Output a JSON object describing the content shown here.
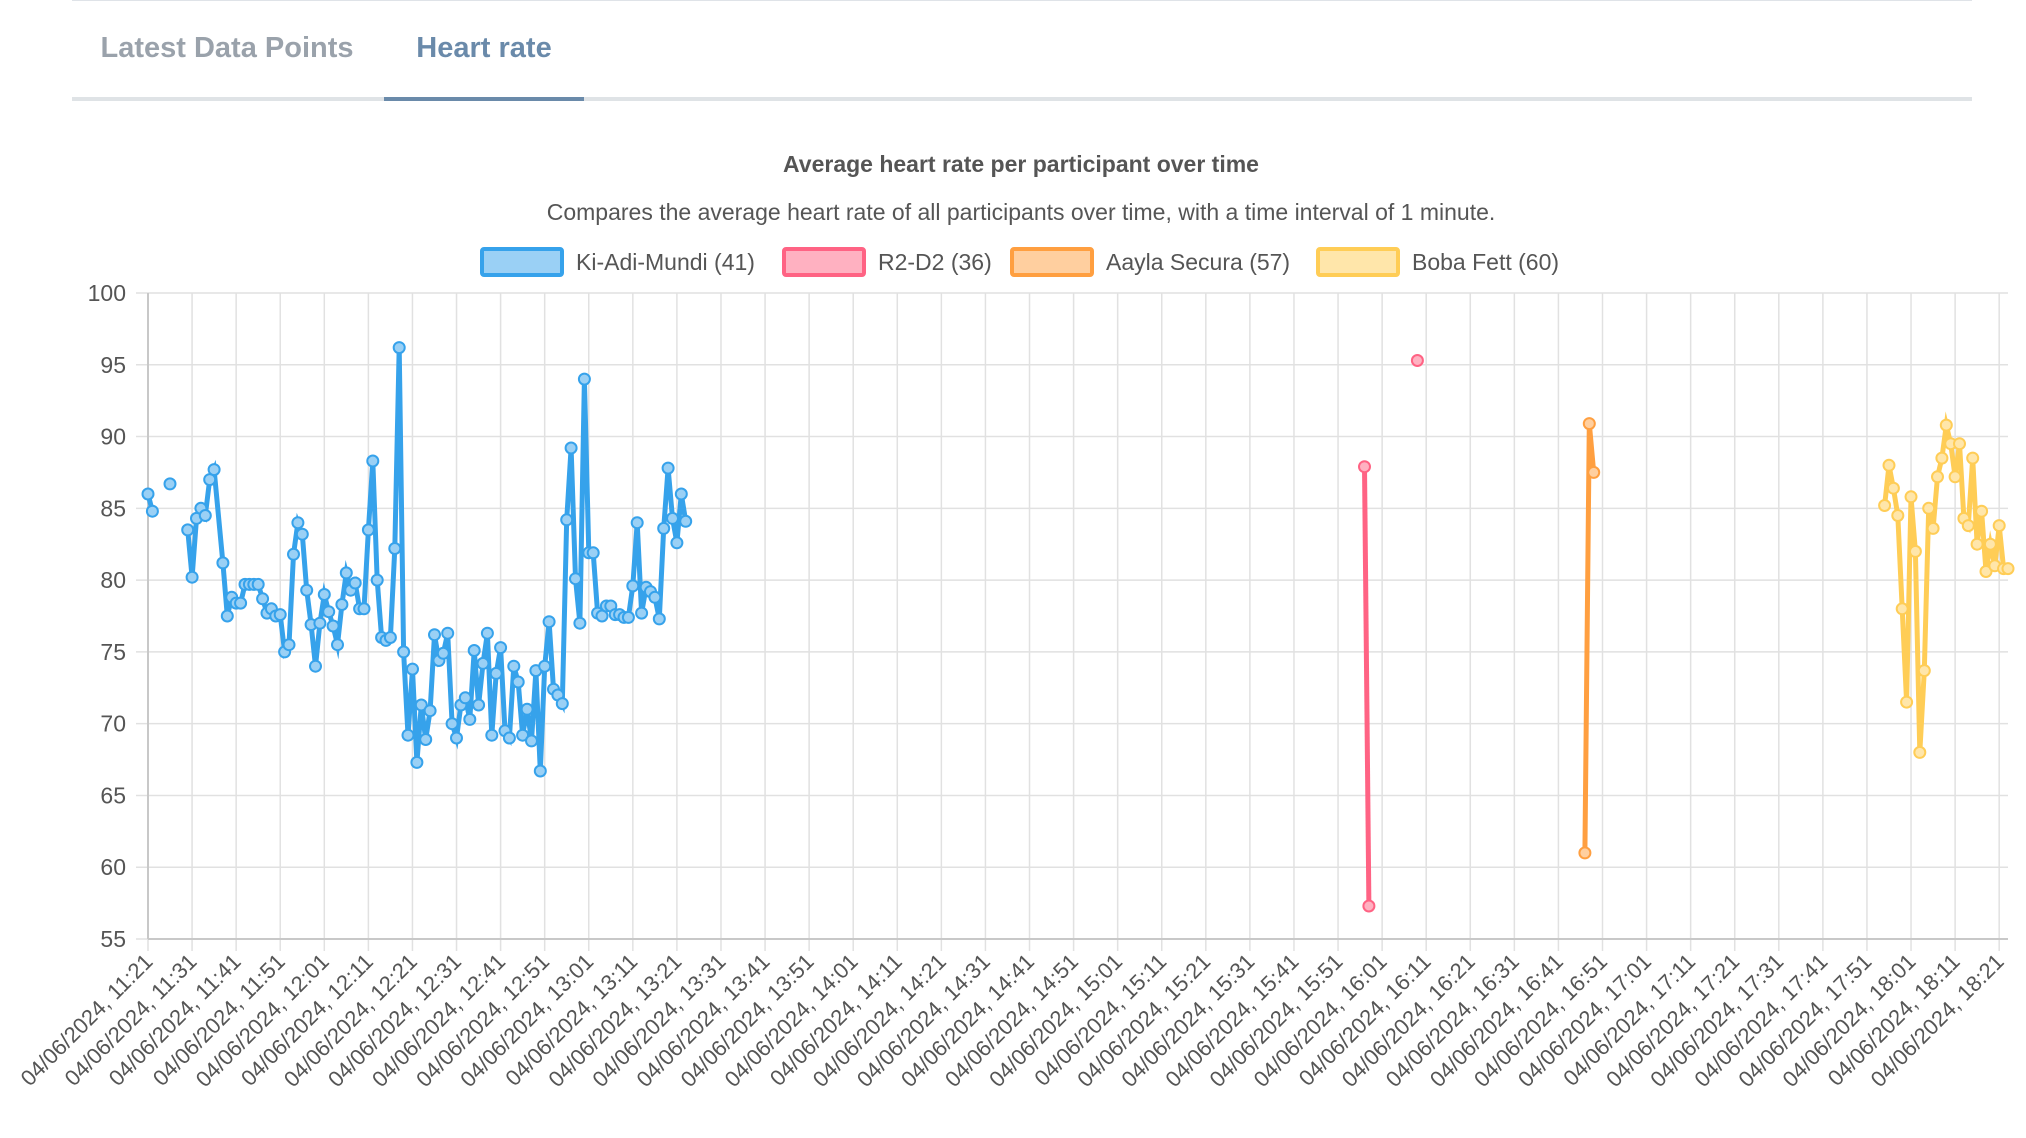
{
  "tabs": [
    {
      "label": "Latest Data Points",
      "active": false
    },
    {
      "label": "Heart rate",
      "active": true
    }
  ],
  "chart_data": {
    "type": "line",
    "title": "Average heart rate per participant over time",
    "subtitle": "Compares the average heart rate of all participants over time, with a time interval of 1 minute.",
    "ylim": [
      55,
      100
    ],
    "yticks": [
      100,
      95,
      90,
      85,
      80,
      75,
      70,
      65,
      60,
      55
    ],
    "grid": true,
    "legend_position": "top",
    "x_start": "04/06/2024, 11:21",
    "x_end": "04/06/2024, 18:23",
    "x_tick_labels": [
      "04/06/2024, 11:21",
      "04/06/2024, 11:31",
      "04/06/2024, 11:41",
      "04/06/2024, 11:51",
      "04/06/2024, 12:01",
      "04/06/2024, 12:11",
      "04/06/2024, 12:21",
      "04/06/2024, 12:31",
      "04/06/2024, 12:41",
      "04/06/2024, 12:51",
      "04/06/2024, 13:01",
      "04/06/2024, 13:11",
      "04/06/2024, 13:21",
      "04/06/2024, 13:31",
      "04/06/2024, 13:41",
      "04/06/2024, 13:51",
      "04/06/2024, 14:01",
      "04/06/2024, 14:11",
      "04/06/2024, 14:21",
      "04/06/2024, 14:31",
      "04/06/2024, 14:41",
      "04/06/2024, 14:51",
      "04/06/2024, 15:01",
      "04/06/2024, 15:11",
      "04/06/2024, 15:21",
      "04/06/2024, 15:31",
      "04/06/2024, 15:41",
      "04/06/2024, 15:51",
      "04/06/2024, 16:01",
      "04/06/2024, 16:11",
      "04/06/2024, 16:21",
      "04/06/2024, 16:31",
      "04/06/2024, 16:41",
      "04/06/2024, 16:51",
      "04/06/2024, 17:01",
      "04/06/2024, 17:11",
      "04/06/2024, 17:21",
      "04/06/2024, 17:31",
      "04/06/2024, 17:41",
      "04/06/2024, 17:51",
      "04/06/2024, 18:01",
      "04/06/2024, 18:11",
      "04/06/2024, 18:21"
    ],
    "series": [
      {
        "name": "Ki-Adi-Mundi (41)",
        "color": "#36a2eb",
        "fill": "#9ad0f5",
        "segments": [
          [
            [
              "11:21",
              86
            ],
            [
              "11:22",
              84.8
            ]
          ],
          [
            [
              "11:26",
              86.7
            ]
          ],
          [
            [
              "11:30",
              83.5
            ],
            [
              "11:31",
              80.2
            ],
            [
              "11:32",
              84.3
            ],
            [
              "11:33",
              85
            ],
            [
              "11:34",
              84.5
            ],
            [
              "11:35",
              87
            ],
            [
              "11:36",
              87.7
            ],
            [
              "11:38",
              81.2
            ],
            [
              "11:39",
              77.5
            ],
            [
              "11:40",
              78.8
            ],
            [
              "11:41",
              78.4
            ],
            [
              "11:42",
              78.4
            ],
            [
              "11:43",
              79.7
            ],
            [
              "11:44",
              79.7
            ],
            [
              "11:45",
              79.7
            ],
            [
              "11:46",
              79.7
            ],
            [
              "11:47",
              78.7
            ],
            [
              "11:48",
              77.7
            ],
            [
              "11:49",
              78
            ],
            [
              "11:50",
              77.5
            ],
            [
              "11:51",
              77.6
            ],
            [
              "11:52",
              75
            ],
            [
              "11:53",
              75.5
            ],
            [
              "11:54",
              81.8
            ],
            [
              "11:55",
              84
            ],
            [
              "11:56",
              83.2
            ],
            [
              "11:57",
              79.3
            ],
            [
              "11:58",
              76.9
            ],
            [
              "11:59",
              74
            ],
            [
              "12:00",
              77
            ],
            [
              "12:01",
              79
            ],
            [
              "12:02",
              77.8
            ],
            [
              "12:03",
              76.8
            ],
            [
              "12:04",
              75.5
            ],
            [
              "12:05",
              78.3
            ],
            [
              "12:06",
              80.5
            ],
            [
              "12:07",
              79.3
            ],
            [
              "12:08",
              79.8
            ],
            [
              "12:09",
              78
            ],
            [
              "12:10",
              78
            ],
            [
              "12:11",
              83.5
            ],
            [
              "12:12",
              88.3
            ],
            [
              "12:13",
              80
            ],
            [
              "12:14",
              76
            ],
            [
              "12:15",
              75.8
            ],
            [
              "12:16",
              76
            ],
            [
              "12:17",
              82.2
            ],
            [
              "12:18",
              96.2
            ],
            [
              "12:19",
              75
            ],
            [
              "12:20",
              69.2
            ],
            [
              "12:21",
              73.8
            ],
            [
              "12:22",
              67.3
            ],
            [
              "12:23",
              71.3
            ],
            [
              "12:24",
              68.9
            ],
            [
              "12:25",
              70.9
            ],
            [
              "12:26",
              76.2
            ],
            [
              "12:27",
              74.4
            ],
            [
              "12:28",
              74.9
            ],
            [
              "12:29",
              76.3
            ],
            [
              "12:30",
              70
            ],
            [
              "12:31",
              69
            ],
            [
              "12:32",
              71.3
            ],
            [
              "12:33",
              71.8
            ],
            [
              "12:34",
              70.3
            ],
            [
              "12:35",
              75.1
            ],
            [
              "12:36",
              71.3
            ],
            [
              "12:37",
              74.2
            ],
            [
              "12:38",
              76.3
            ],
            [
              "12:39",
              69.2
            ],
            [
              "12:40",
              73.5
            ],
            [
              "12:41",
              75.3
            ],
            [
              "12:42",
              69.5
            ],
            [
              "12:43",
              69
            ],
            [
              "12:44",
              74
            ],
            [
              "12:45",
              72.9
            ],
            [
              "12:46",
              69.2
            ],
            [
              "12:47",
              71
            ],
            [
              "12:48",
              68.8
            ],
            [
              "12:49",
              73.7
            ],
            [
              "12:50",
              66.7
            ],
            [
              "12:51",
              74
            ],
            [
              "12:52",
              77.1
            ],
            [
              "12:53",
              72.4
            ],
            [
              "12:54",
              72
            ],
            [
              "12:55",
              71.4
            ],
            [
              "12:56",
              84.2
            ],
            [
              "12:57",
              89.2
            ],
            [
              "12:58",
              80.1
            ],
            [
              "12:59",
              77
            ],
            [
              "13:00",
              94
            ],
            [
              "13:01",
              81.9
            ],
            [
              "13:02",
              81.9
            ],
            [
              "13:03",
              77.7
            ],
            [
              "13:04",
              77.5
            ],
            [
              "13:05",
              78.2
            ],
            [
              "13:06",
              78.2
            ],
            [
              "13:07",
              77.6
            ],
            [
              "13:08",
              77.6
            ],
            [
              "13:09",
              77.4
            ],
            [
              "13:10",
              77.4
            ],
            [
              "13:11",
              79.6
            ],
            [
              "13:12",
              84
            ],
            [
              "13:13",
              77.7
            ],
            [
              "13:14",
              79.5
            ],
            [
              "13:15",
              79.2
            ],
            [
              "13:16",
              78.8
            ],
            [
              "13:17",
              77.3
            ],
            [
              "13:18",
              83.6
            ],
            [
              "13:19",
              87.8
            ],
            [
              "13:20",
              84.3
            ],
            [
              "13:21",
              82.6
            ],
            [
              "13:22",
              86
            ],
            [
              "13:23",
              84.1
            ]
          ]
        ]
      },
      {
        "name": "R2-D2 (36)",
        "color": "#ff6384",
        "fill": "#ffb1c1",
        "segments": [
          [
            [
              "15:57",
              87.9
            ],
            [
              "15:58",
              57.3
            ]
          ],
          [
            [
              "16:09",
              95.3
            ]
          ]
        ]
      },
      {
        "name": "Aayla Secura (57)",
        "color": "#ff9f40",
        "fill": "#ffcf9f",
        "segments": [
          [
            [
              "16:47",
              61
            ],
            [
              "16:48",
              90.9
            ],
            [
              "16:49",
              87.5
            ]
          ]
        ]
      },
      {
        "name": "Boba Fett (60)",
        "color": "#ffcd56",
        "fill": "#ffe6aa",
        "segments": [
          [
            [
              "17:55",
              85.2
            ],
            [
              "17:56",
              88
            ],
            [
              "17:57",
              86.4
            ],
            [
              "17:58",
              84.5
            ],
            [
              "17:59",
              78
            ],
            [
              "18:00",
              71.5
            ],
            [
              "18:01",
              85.8
            ],
            [
              "18:02",
              82
            ],
            [
              "18:03",
              68
            ],
            [
              "18:04",
              73.7
            ],
            [
              "18:05",
              85
            ],
            [
              "18:06",
              83.6
            ],
            [
              "18:07",
              87.2
            ],
            [
              "18:08",
              88.5
            ],
            [
              "18:09",
              90.8
            ],
            [
              "18:10",
              89.5
            ],
            [
              "18:11",
              87.2
            ],
            [
              "18:12",
              89.5
            ],
            [
              "18:13",
              84.3
            ],
            [
              "18:14",
              83.8
            ],
            [
              "18:15",
              88.5
            ],
            [
              "18:16",
              82.5
            ],
            [
              "18:17",
              84.8
            ],
            [
              "18:18",
              80.6
            ],
            [
              "18:19",
              82.5
            ],
            [
              "18:20",
              81
            ],
            [
              "18:21",
              83.8
            ],
            [
              "18:22",
              80.8
            ],
            [
              "18:23",
              80.8
            ]
          ]
        ]
      }
    ]
  }
}
